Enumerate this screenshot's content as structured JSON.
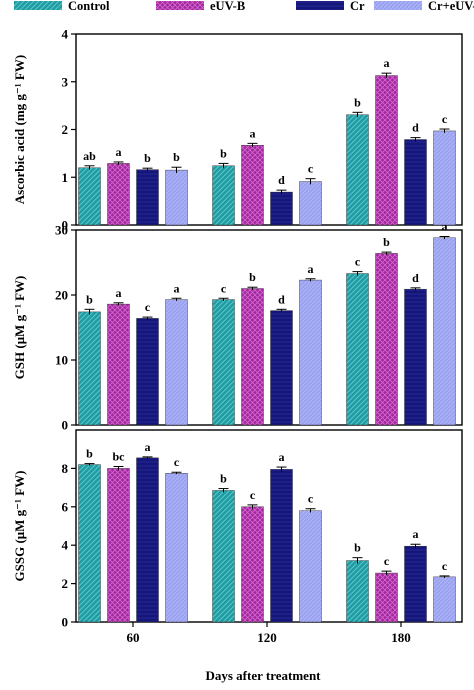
{
  "legend": [
    {
      "key": "control",
      "label": "Control",
      "color": "#1e9ca3"
    },
    {
      "key": "euvb",
      "label": "eUV-B",
      "color": "#a0289c"
    },
    {
      "key": "cr",
      "label": "Cr",
      "color": "#15167a"
    },
    {
      "key": "cruvb",
      "label": "Cr+eUV-B",
      "color": "#9aa2f2"
    }
  ],
  "x_axis_title": "Days after treatment",
  "chart_data": [
    {
      "type": "bar",
      "panel": "ascorbic-acid",
      "categories": [
        "60",
        "120",
        "180"
      ],
      "ylabel": "Ascorbic acid (mg g⁻¹ FW)",
      "ylim": [
        0,
        4
      ],
      "yticks": [
        0,
        1,
        2,
        3,
        4
      ],
      "series": [
        {
          "name": "Control",
          "values": [
            1.2,
            1.24,
            2.31
          ],
          "errors": [
            0.04,
            0.05,
            0.05
          ],
          "letters": [
            "ab",
            "b",
            "b"
          ]
        },
        {
          "name": "eUV-B",
          "values": [
            1.29,
            1.67,
            3.13
          ],
          "errors": [
            0.03,
            0.04,
            0.05
          ],
          "letters": [
            "a",
            "a",
            "a"
          ]
        },
        {
          "name": "Cr",
          "values": [
            1.16,
            0.69,
            1.79
          ],
          "errors": [
            0.03,
            0.04,
            0.04
          ],
          "letters": [
            "b",
            "d",
            "d"
          ]
        },
        {
          "name": "Cr+eUV-B",
          "values": [
            1.15,
            0.91,
            1.97
          ],
          "errors": [
            0.06,
            0.06,
            0.04
          ],
          "letters": [
            "b",
            "c",
            "c"
          ]
        }
      ]
    },
    {
      "type": "bar",
      "panel": "gsh",
      "categories": [
        "60",
        "120",
        "180"
      ],
      "ylabel": "GSH (μM g⁻¹ FW)",
      "ylim": [
        0,
        30
      ],
      "yticks": [
        0,
        10,
        20,
        30
      ],
      "series": [
        {
          "name": "Control",
          "values": [
            17.4,
            19.3,
            23.3
          ],
          "errors": [
            0.4,
            0.2,
            0.3
          ],
          "letters": [
            "b",
            "c",
            "c"
          ]
        },
        {
          "name": "eUV-B",
          "values": [
            18.6,
            21.0,
            26.4
          ],
          "errors": [
            0.2,
            0.2,
            0.2
          ],
          "letters": [
            "a",
            "b",
            "b"
          ]
        },
        {
          "name": "Cr",
          "values": [
            16.4,
            17.6,
            20.9
          ],
          "errors": [
            0.2,
            0.2,
            0.2
          ],
          "letters": [
            "c",
            "d",
            "d"
          ]
        },
        {
          "name": "Cr+eUV-B",
          "values": [
            19.3,
            22.3,
            28.8
          ],
          "errors": [
            0.2,
            0.2,
            0.2
          ],
          "letters": [
            "a",
            "a",
            "a"
          ]
        }
      ]
    },
    {
      "type": "bar",
      "panel": "gssg",
      "categories": [
        "60",
        "120",
        "180"
      ],
      "ylabel": "GSSG (μM g⁻¹ FW)",
      "ylim": [
        0,
        10
      ],
      "yticks": [
        0,
        2,
        4,
        6,
        8
      ],
      "series": [
        {
          "name": "Control",
          "values": [
            8.2,
            6.85,
            3.2
          ],
          "errors": [
            0.05,
            0.1,
            0.15
          ],
          "letters": [
            "b",
            "b",
            "b"
          ]
        },
        {
          "name": "eUV-B",
          "values": [
            8.0,
            6.0,
            2.55
          ],
          "errors": [
            0.1,
            0.1,
            0.1
          ],
          "letters": [
            "bc",
            "c",
            "c"
          ]
        },
        {
          "name": "Cr",
          "values": [
            8.55,
            7.95,
            3.95
          ],
          "errors": [
            0.05,
            0.12,
            0.1
          ],
          "letters": [
            "a",
            "a",
            "a"
          ]
        },
        {
          "name": "Cr+eUV-B",
          "values": [
            7.75,
            5.8,
            2.35
          ],
          "errors": [
            0.05,
            0.1,
            0.05
          ],
          "letters": [
            "c",
            "c",
            "c"
          ]
        }
      ]
    }
  ]
}
